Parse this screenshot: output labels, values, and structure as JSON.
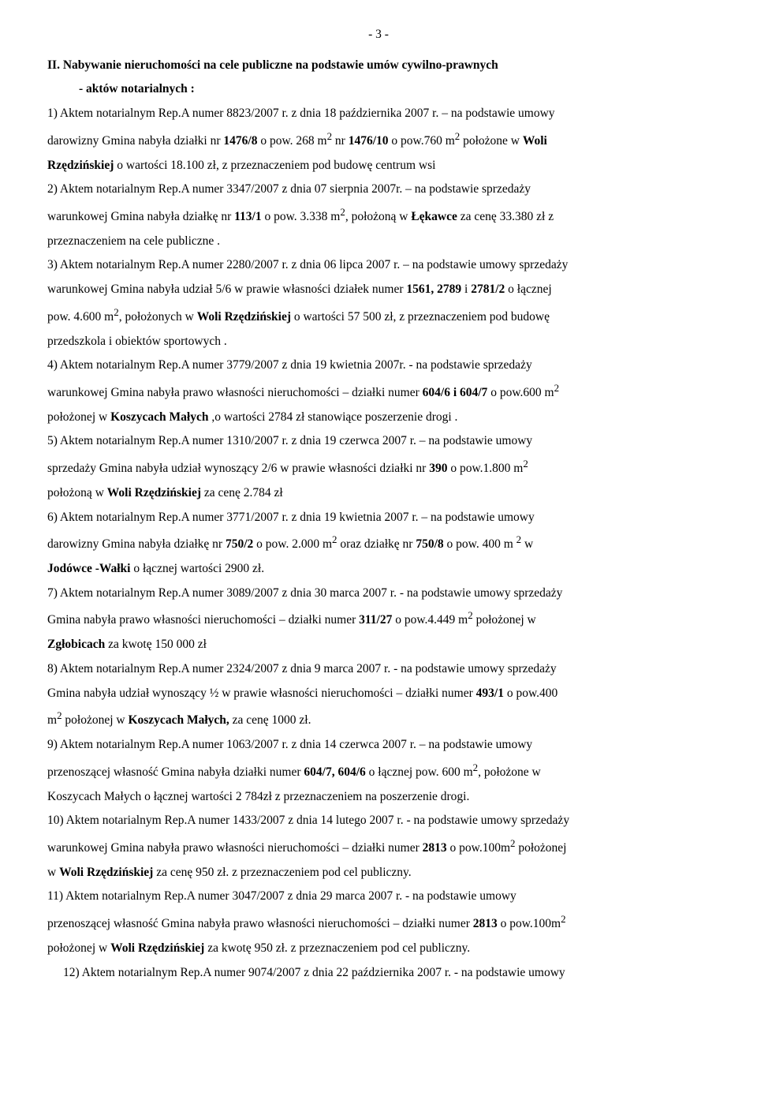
{
  "page_number": "- 3 -",
  "section_title": "II. Nabywanie nieruchomości na cele publiczne na podstawie umów cywilno-prawnych",
  "sub_title": "-    aktów notarialnych :",
  "items": {
    "i1": {
      "p1a": "1) Aktem notarialnym Rep.A numer 8823/2007 r. z dnia 18 października 2007 r. –  na podstawie umowy",
      "p1b": "darowizny  Gmina nabyła  działki nr ",
      "p1c": "1476/8",
      "p1d": " o pow.  268 m",
      "p1e": "2",
      "p1f": "    nr ",
      "p1g": "1476/10",
      "p1h": " o pow.760 m",
      "p1i": "2",
      "p1j": "  położone w ",
      "p1k": "Woli",
      "p2a": "Rzędzińskiej",
      "p2b": " o wartości  18.100 zł, z przeznaczeniem pod budowę centrum wsi"
    },
    "i2": {
      "p1": "2) Aktem notarialnym Rep.A numer   3347/2007 z dnia 07 sierpnia 2007r. –  na podstawie sprzedaży",
      "p2a": "warunkowej  Gmina nabyła  działkę nr ",
      "p2b": "113/1",
      "p2c": "  o pow. 3.338 m",
      "p2d": "2",
      "p2e": ", położoną w ",
      "p2f": "Łękawce",
      "p2g": " za cenę 33.380 zł z",
      "p3": "przeznaczeniem na cele publiczne ."
    },
    "i3": {
      "p1": "3) Aktem notarialnym Rep.A numer  2280/2007 r. z dnia 06 lipca 2007 r. –  na podstawie umowy sprzedaży",
      "p2a": "warunkowej  Gmina nabyła udział 5/6 w prawie własności działek numer  ",
      "p2b": "1561, 2789",
      "p2c": " i  ",
      "p2d": "2781/2",
      "p2e": "  o łącznej",
      "p3a": "pow. 4.600 m",
      "p3b": "2",
      "p3c": ", położonych  w ",
      "p3d": "Woli Rzędzińskiej",
      "p3e": "  o wartości 57 500 zł,  z przeznaczeniem pod budowę",
      "p4": "przedszkola i obiektów sportowych ."
    },
    "i4": {
      "p1": "4) Aktem notarialnym Rep.A numer 3779/2007  z dnia 19 kwietnia 2007r. - na podstawie sprzedaży",
      "p2a": "warunkowej Gmina nabyła prawo własności nieruchomości  – działki  numer ",
      "p2b": "604/6 i 604/7",
      "p2c": "  o   pow.600 m",
      "p2d": "2",
      "p3a": "położonej w ",
      "p3b": "Koszycach Małych",
      "p3c": " ,o wartości 2784 zł stanowiące poszerzenie drogi ."
    },
    "i5": {
      "p1": "5) Aktem notarialnym Rep.A numer 1310/2007 r. z dnia 19 czerwca 2007 r. –  na podstawie umowy",
      "p2a": "sprzedaży Gmina nabyła  udział wynoszący 2/6 w prawie własności działki  nr ",
      "p2b": "390",
      "p2c": "  o pow.1.800 m",
      "p2d": "2",
      "p3a": "położoną w ",
      "p3b": "Woli Rzędzińskiej",
      "p3c": "  za cenę 2.784 zł"
    },
    "i6": {
      "p1": "6) Aktem notarialnym Rep.A numer  3771/2007 r. z dnia 19 kwietnia 2007 r. –  na podstawie umowy",
      "p2a": "darowizny Gmina nabyła działkę  nr ",
      "p2b": "750/2",
      "p2c": "   o pow. 2.000 m",
      "p2d": "2",
      "p2e": "  oraz działkę nr ",
      "p2f": "750/8",
      "p2g": " o pow. 400 m ",
      "p2h": "2",
      "p2i": " w",
      "p3a": "Jodówce -Wałki",
      "p3b": "  o łącznej wartości  2900 zł."
    },
    "i7": {
      "p1": "7) Aktem notarialnym Rep.A numer 3089/2007  z dnia 30 marca 2007 r. - na podstawie umowy sprzedaży",
      "p2a": "Gmina nabyła prawo własności nieruchomości  – działki  numer ",
      "p2b": "311/27",
      "p2c": "  o   pow.4.449 m",
      "p2d": "2",
      "p2e": " położonej  w",
      "p3a": "Zgłobicach",
      "p3b": " za kwotę 150 000 zł"
    },
    "i8": {
      "p1": "8) Aktem notarialnym Rep.A numer 2324/2007  z dnia 9 marca 2007 r. - na podstawie umowy sprzedaży",
      "p2a": "Gmina nabyła udział wynoszący ½ w prawie  własności nieruchomości  – działki  numer ",
      "p2b": "493/1",
      "p2c": "  o   pow.400",
      "p3a": "m",
      "p3b": "2",
      "p3c": " położonej w ",
      "p3d": "Koszycach Małych,",
      "p3e": "   za cenę 1000  zł."
    },
    "i9": {
      "p1": "9) Aktem notarialnym Rep.A numer  1063/2007 r. z dnia 14 czerwca 2007 r. –  na podstawie umowy",
      "p2a": "przenoszącej własność Gmina nabyła działki  numer  ",
      "p2b": "604/7, 604/6",
      "p2c": "  o łącznej pow. 600 m",
      "p2d": "2",
      "p2e": ", położone  w",
      "p3": "Koszycach Małych  o łącznej wartości 2 784zł z przeznaczeniem na poszerzenie drogi."
    },
    "i10": {
      "p1": "10) Aktem notarialnym Rep.A numer 1433/2007  z dnia 14 lutego 2007 r. - na podstawie umowy sprzedaży",
      "p2a": "warunkowej Gmina nabyła prawo własności nieruchomości  – działki  numer ",
      "p2b": "2813",
      "p2c": "  o   pow.100m",
      "p2d": "2",
      "p2e": " położonej",
      "p3a": "  w ",
      "p3b": "Woli Rzędzińskiej",
      "p3c": "  za cenę 950 zł. z przeznaczeniem pod cel publiczny."
    },
    "i11": {
      "p1": "11) Aktem notarialnym Rep.A numer 3047/2007  z dnia 29 marca  2007 r. - na podstawie umowy",
      "p2a": "przenoszącej własność Gmina nabyła prawo własności nieruchomości  – działki  numer ",
      "p2b": "2813",
      "p2c": "  o  pow.100m",
      "p2d": "2",
      "p3a": "położonej   w ",
      "p3b": "Woli Rzędzińskiej",
      "p3c": "  za kwotę  950 zł. z przeznaczeniem pod cel publiczny."
    },
    "i12": {
      "p1": "12) Aktem notarialnym Rep.A numer 9074/2007  z dnia 22 października 2007 r. - na podstawie umowy"
    }
  }
}
